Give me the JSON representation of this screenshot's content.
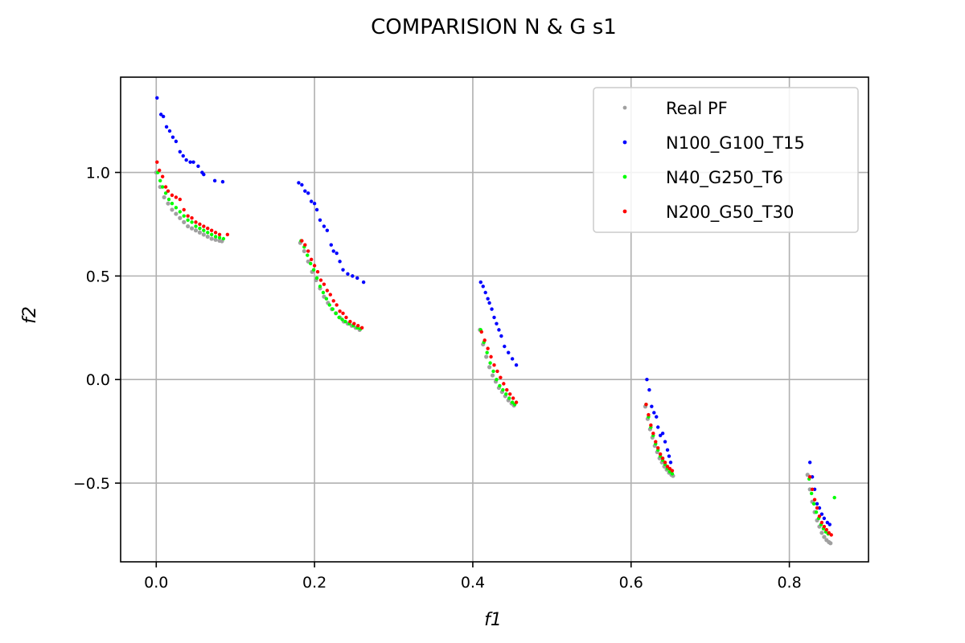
{
  "chart_data": {
    "type": "scatter",
    "title": "COMPARISION N & G s1",
    "xlabel": "f1",
    "ylabel": "f2",
    "xlim": [
      -0.045,
      0.9
    ],
    "ylim": [
      -0.88,
      1.46
    ],
    "xticks": [
      0.0,
      0.2,
      0.4,
      0.6,
      0.8
    ],
    "xtick_labels": [
      "0.0",
      "0.2",
      "0.4",
      "0.6",
      "0.8"
    ],
    "yticks": [
      -0.5,
      0.0,
      0.5,
      1.0
    ],
    "ytick_labels": [
      "−0.5",
      "0.0",
      "0.5",
      "1.0"
    ],
    "grid": true,
    "legend_position": "top-right",
    "series": [
      {
        "name": "Real PF",
        "color": "#a0a0a0",
        "x": [
          0.0,
          0.005,
          0.01,
          0.015,
          0.02,
          0.025,
          0.03,
          0.035,
          0.04,
          0.045,
          0.05,
          0.055,
          0.06,
          0.065,
          0.07,
          0.075,
          0.08,
          0.083,
          0.182,
          0.187,
          0.192,
          0.197,
          0.202,
          0.207,
          0.212,
          0.217,
          0.222,
          0.227,
          0.232,
          0.237,
          0.242,
          0.247,
          0.252,
          0.257,
          0.409,
          0.413,
          0.417,
          0.421,
          0.425,
          0.429,
          0.433,
          0.437,
          0.441,
          0.445,
          0.449,
          0.452,
          0.618,
          0.621,
          0.624,
          0.627,
          0.63,
          0.633,
          0.636,
          0.639,
          0.642,
          0.645,
          0.648,
          0.651,
          0.653,
          0.823,
          0.826,
          0.829,
          0.832,
          0.835,
          0.838,
          0.841,
          0.844,
          0.847,
          0.85,
          0.852
        ],
        "y": [
          1.0,
          0.93,
          0.88,
          0.85,
          0.82,
          0.8,
          0.78,
          0.76,
          0.74,
          0.73,
          0.72,
          0.71,
          0.7,
          0.69,
          0.68,
          0.675,
          0.67,
          0.668,
          0.66,
          0.62,
          0.57,
          0.52,
          0.48,
          0.44,
          0.4,
          0.37,
          0.34,
          0.32,
          0.3,
          0.28,
          0.27,
          0.26,
          0.25,
          0.24,
          0.24,
          0.17,
          0.11,
          0.06,
          0.02,
          -0.01,
          -0.04,
          -0.06,
          -0.08,
          -0.1,
          -0.115,
          -0.125,
          -0.13,
          -0.19,
          -0.24,
          -0.28,
          -0.32,
          -0.35,
          -0.38,
          -0.4,
          -0.42,
          -0.435,
          -0.45,
          -0.46,
          -0.465,
          -0.46,
          -0.53,
          -0.59,
          -0.64,
          -0.68,
          -0.71,
          -0.74,
          -0.76,
          -0.775,
          -0.785,
          -0.79
        ]
      },
      {
        "name": "N100_G100_T15",
        "color": "#0000ff",
        "x": [
          0.001,
          0.006,
          0.009,
          0.013,
          0.017,
          0.021,
          0.025,
          0.03,
          0.034,
          0.038,
          0.043,
          0.047,
          0.053,
          0.058,
          0.06,
          0.074,
          0.084,
          0.18,
          0.184,
          0.188,
          0.192,
          0.196,
          0.2,
          0.203,
          0.207,
          0.212,
          0.216,
          0.221,
          0.224,
          0.228,
          0.232,
          0.236,
          0.242,
          0.248,
          0.254,
          0.262,
          0.41,
          0.413,
          0.416,
          0.419,
          0.421,
          0.424,
          0.427,
          0.43,
          0.433,
          0.436,
          0.44,
          0.445,
          0.45,
          0.455,
          0.62,
          0.623,
          0.626,
          0.629,
          0.632,
          0.634,
          0.637,
          0.64,
          0.643,
          0.646,
          0.648,
          0.65,
          0.826,
          0.829,
          0.832,
          0.835,
          0.838,
          0.841,
          0.844,
          0.848,
          0.851
        ],
        "y": [
          1.36,
          1.28,
          1.27,
          1.22,
          1.2,
          1.17,
          1.15,
          1.1,
          1.08,
          1.06,
          1.05,
          1.05,
          1.03,
          1.0,
          0.99,
          0.96,
          0.955,
          0.95,
          0.94,
          0.91,
          0.9,
          0.86,
          0.85,
          0.82,
          0.77,
          0.74,
          0.72,
          0.65,
          0.62,
          0.61,
          0.57,
          0.53,
          0.51,
          0.5,
          0.49,
          0.47,
          0.47,
          0.45,
          0.42,
          0.39,
          0.37,
          0.34,
          0.3,
          0.27,
          0.24,
          0.21,
          0.16,
          0.13,
          0.1,
          0.07,
          0.0,
          -0.05,
          -0.13,
          -0.16,
          -0.18,
          -0.23,
          -0.27,
          -0.26,
          -0.3,
          -0.34,
          -0.37,
          -0.4,
          -0.4,
          -0.47,
          -0.53,
          -0.6,
          -0.62,
          -0.65,
          -0.67,
          -0.69,
          -0.7
        ]
      },
      {
        "name": "N40_G250_T6",
        "color": "#00ff00",
        "x": [
          0.002,
          0.005,
          0.008,
          0.012,
          0.016,
          0.02,
          0.025,
          0.03,
          0.035,
          0.04,
          0.045,
          0.05,
          0.055,
          0.06,
          0.065,
          0.07,
          0.075,
          0.08,
          0.085,
          0.183,
          0.187,
          0.191,
          0.195,
          0.199,
          0.203,
          0.207,
          0.211,
          0.215,
          0.219,
          0.223,
          0.227,
          0.231,
          0.235,
          0.239,
          0.244,
          0.249,
          0.254,
          0.258,
          0.41,
          0.414,
          0.418,
          0.422,
          0.426,
          0.43,
          0.434,
          0.438,
          0.442,
          0.446,
          0.45,
          0.453,
          0.619,
          0.622,
          0.625,
          0.628,
          0.631,
          0.634,
          0.637,
          0.64,
          0.643,
          0.646,
          0.649,
          0.652,
          0.825,
          0.828,
          0.831,
          0.834,
          0.837,
          0.84,
          0.843,
          0.846,
          0.849,
          0.857
        ],
        "y": [
          1.0,
          0.96,
          0.93,
          0.9,
          0.87,
          0.85,
          0.83,
          0.81,
          0.79,
          0.77,
          0.76,
          0.74,
          0.73,
          0.72,
          0.71,
          0.7,
          0.69,
          0.685,
          0.68,
          0.67,
          0.64,
          0.6,
          0.56,
          0.53,
          0.49,
          0.45,
          0.42,
          0.39,
          0.36,
          0.34,
          0.32,
          0.3,
          0.29,
          0.28,
          0.27,
          0.26,
          0.25,
          0.245,
          0.24,
          0.18,
          0.13,
          0.08,
          0.04,
          0.0,
          -0.03,
          -0.05,
          -0.07,
          -0.09,
          -0.11,
          -0.12,
          -0.12,
          -0.18,
          -0.23,
          -0.27,
          -0.31,
          -0.34,
          -0.37,
          -0.39,
          -0.41,
          -0.43,
          -0.445,
          -0.455,
          -0.48,
          -0.55,
          -0.6,
          -0.64,
          -0.67,
          -0.7,
          -0.72,
          -0.735,
          -0.745,
          -0.57
        ]
      },
      {
        "name": "N200_G50_T30",
        "color": "#ff0000",
        "x": [
          0.001,
          0.004,
          0.008,
          0.012,
          0.015,
          0.02,
          0.025,
          0.03,
          0.035,
          0.04,
          0.045,
          0.05,
          0.055,
          0.06,
          0.065,
          0.07,
          0.075,
          0.08,
          0.09,
          0.184,
          0.188,
          0.192,
          0.196,
          0.2,
          0.204,
          0.208,
          0.212,
          0.216,
          0.22,
          0.224,
          0.228,
          0.232,
          0.236,
          0.24,
          0.245,
          0.25,
          0.255,
          0.26,
          0.411,
          0.415,
          0.419,
          0.423,
          0.427,
          0.431,
          0.435,
          0.439,
          0.443,
          0.447,
          0.451,
          0.455,
          0.619,
          0.622,
          0.625,
          0.628,
          0.631,
          0.634,
          0.637,
          0.64,
          0.643,
          0.646,
          0.649,
          0.652,
          0.826,
          0.829,
          0.832,
          0.835,
          0.838,
          0.841,
          0.844,
          0.847,
          0.85,
          0.853
        ],
        "y": [
          1.05,
          1.01,
          0.98,
          0.93,
          0.91,
          0.89,
          0.88,
          0.87,
          0.82,
          0.79,
          0.78,
          0.76,
          0.75,
          0.74,
          0.73,
          0.72,
          0.71,
          0.7,
          0.7,
          0.67,
          0.65,
          0.62,
          0.58,
          0.55,
          0.52,
          0.48,
          0.46,
          0.43,
          0.41,
          0.38,
          0.36,
          0.33,
          0.32,
          0.3,
          0.28,
          0.27,
          0.26,
          0.25,
          0.23,
          0.19,
          0.15,
          0.11,
          0.07,
          0.04,
          0.01,
          -0.02,
          -0.05,
          -0.07,
          -0.09,
          -0.11,
          -0.12,
          -0.17,
          -0.22,
          -0.26,
          -0.3,
          -0.33,
          -0.36,
          -0.38,
          -0.4,
          -0.42,
          -0.43,
          -0.44,
          -0.47,
          -0.53,
          -0.58,
          -0.62,
          -0.66,
          -0.69,
          -0.71,
          -0.725,
          -0.74,
          -0.75
        ]
      }
    ]
  }
}
